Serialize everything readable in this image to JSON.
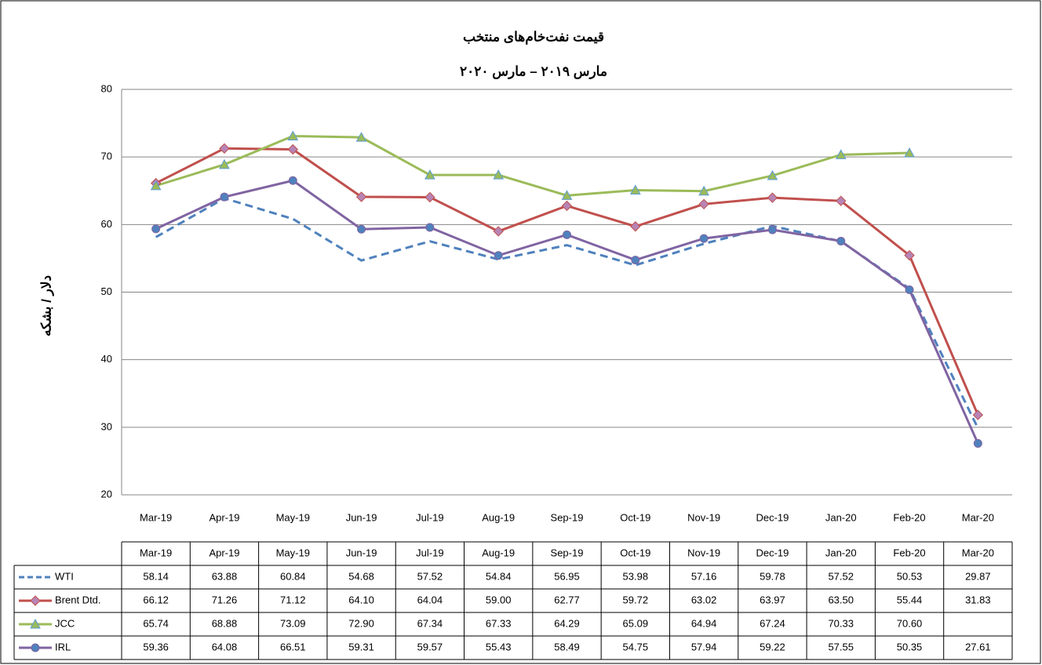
{
  "chart_data": {
    "type": "line",
    "title": "قیمت نفت‌خام‌های منتخب",
    "subtitle": "مارس ۲۰۱۹ – مارس ۲۰۲۰",
    "y_label": "دلار / بشکه",
    "categories": [
      "Mar-19",
      "Apr-19",
      "May-19",
      "Jun-19",
      "Jul-19",
      "Aug-19",
      "Sep-19",
      "Oct-19",
      "Nov-19",
      "Dec-19",
      "Jan-20",
      "Feb-20",
      "Mar-20"
    ],
    "ylim": [
      20,
      80
    ],
    "yticks": [
      20,
      30,
      40,
      50,
      60,
      70,
      80
    ],
    "grid": true,
    "data_table": true,
    "series": [
      {
        "name": "WTI",
        "color": "#4f81bd",
        "dash": true,
        "marker": "none",
        "values": [
          58.14,
          63.88,
          60.84,
          54.68,
          57.52,
          54.84,
          56.95,
          53.98,
          57.16,
          59.78,
          57.52,
          50.53,
          29.87
        ],
        "value_labels": [
          "58.14",
          "63.88",
          "60.84",
          "54.68",
          "57.52",
          "54.84",
          "56.95",
          "53.98",
          "57.16",
          "59.78",
          "57.52",
          "50.53",
          "29.87"
        ]
      },
      {
        "name": "Brent Dtd.",
        "color": "#c0504d",
        "marker": "diamond",
        "marker_color": "#b784b5",
        "values": [
          66.12,
          71.26,
          71.12,
          64.1,
          64.04,
          59.0,
          62.77,
          59.72,
          63.02,
          63.97,
          63.5,
          55.44,
          31.83
        ],
        "value_labels": [
          "66.12",
          "71.26",
          "71.12",
          "64.10",
          "64.04",
          "59.00",
          "62.77",
          "59.72",
          "63.02",
          "63.97",
          "63.50",
          "55.44",
          "31.83"
        ]
      },
      {
        "name": "JCC",
        "color": "#9bbb59",
        "marker": "triangle",
        "marker_color": "#5b9bd5",
        "values": [
          65.74,
          68.88,
          73.09,
          72.9,
          67.34,
          67.33,
          64.29,
          65.09,
          64.94,
          67.24,
          70.33,
          70.6,
          null
        ],
        "value_labels": [
          "65.74",
          "68.88",
          "73.09",
          "72.90",
          "67.34",
          "67.33",
          "64.29",
          "65.09",
          "64.94",
          "67.24",
          "70.33",
          "70.60",
          null
        ]
      },
      {
        "name": "IRL",
        "color": "#8064a2",
        "marker": "circle",
        "marker_color": "#4f81bd",
        "values": [
          59.36,
          64.08,
          66.51,
          59.31,
          59.57,
          55.43,
          58.49,
          54.75,
          57.94,
          59.22,
          57.55,
          50.35,
          27.61
        ],
        "value_labels": [
          "59.36",
          "64.08",
          "66.51",
          "59.31",
          "59.57",
          "55.43",
          "58.49",
          "54.75",
          "57.94",
          "59.22",
          "57.55",
          "50.35",
          "27.61"
        ]
      }
    ]
  }
}
